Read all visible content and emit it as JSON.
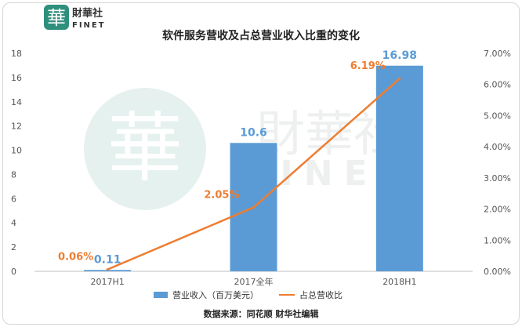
{
  "logo": {
    "mark": "華",
    "cn": "財華社",
    "en": "FINET"
  },
  "watermark": {
    "mark": "華",
    "cn": "財華社",
    "en": "FINET"
  },
  "chart_data": {
    "type": "bar+line",
    "title": "软件服务营收及占总营业收入比重的变化",
    "categories": [
      "2017H1",
      "2017全年",
      "2018H1"
    ],
    "series": [
      {
        "name": "营业收入（百万美元）",
        "type": "bar",
        "axis": "left",
        "values": [
          0.11,
          10.6,
          16.98
        ],
        "labels": [
          "0.11",
          "10.6",
          "16.98"
        ],
        "color": "#5b9bd5",
        "label_color": "#5b9bd5"
      },
      {
        "name": "占总营收比",
        "type": "line",
        "axis": "right",
        "values": [
          0.06,
          2.05,
          6.19
        ],
        "labels": [
          "0.06%",
          "2.05%",
          "6.19%"
        ],
        "color": "#ed7d31",
        "label_color": "#ed7d31"
      }
    ],
    "y_left": {
      "min": 0,
      "max": 18,
      "ticks": [
        "0",
        "2",
        "4",
        "6",
        "8",
        "10",
        "12",
        "14",
        "16",
        "18"
      ]
    },
    "y_right": {
      "min": 0,
      "max": 7,
      "ticks": [
        "0.00%",
        "1.00%",
        "2.00%",
        "3.00%",
        "4.00%",
        "5.00%",
        "6.00%",
        "7.00%"
      ]
    },
    "legend_position": "bottom",
    "grid": false
  },
  "source": "数据来源：同花顺 财华社编辑"
}
